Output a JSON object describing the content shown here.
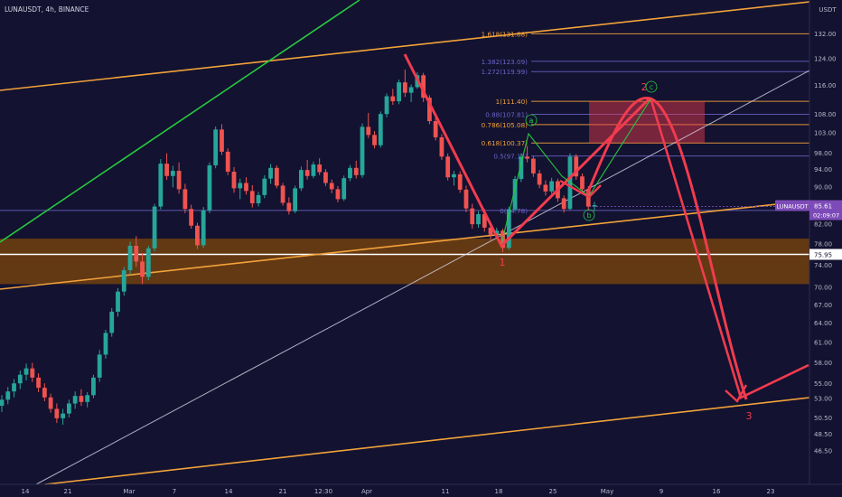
{
  "header": {
    "symbol_info": "LUNAUSDT, 4h, BINANCE",
    "currency": "USDT"
  },
  "price_tag": {
    "symbol": "LUNAUSDT",
    "price": "85.61",
    "countdown": "02:09:07"
  },
  "level_tag": "75.95",
  "colors": {
    "background": "#131230",
    "fib": "#f2a23a",
    "fib_purple": "#6a64c8",
    "wave": "#f23b4e",
    "support_zone": "#6a3d12",
    "trend_green": "#27c93f",
    "white_line": "#ffffff",
    "bull_candle": "#26a69a",
    "bear_candle": "#ef5350"
  },
  "chart_data": {
    "type": "candlestick",
    "y_scale": "log",
    "ylim": [
      45.0,
      140.0
    ],
    "x_ticks": [
      "14",
      "21",
      "Mar",
      "7",
      "14",
      "21",
      "12:30",
      "Apr",
      "11",
      "18",
      "25",
      "May",
      "9",
      "16",
      "23"
    ],
    "y_ticks": [
      "132.00",
      "124.00",
      "116.00",
      "108.00",
      "103.00",
      "98.00",
      "94.00",
      "90.00",
      "85.61",
      "82.00",
      "78.00",
      "75.95",
      "74.00",
      "70.00",
      "67.00",
      "64.00",
      "61.00",
      "58.00",
      "55.00",
      "53.00",
      "50.50",
      "48.50",
      "46.50"
    ],
    "y_tick_values": [
      132,
      124,
      116,
      108,
      103,
      98,
      94,
      90,
      85.61,
      82,
      78,
      75.95,
      74,
      70,
      67,
      64,
      61,
      58,
      55,
      53,
      50.5,
      48.5,
      46.5
    ],
    "fib_levels": [
      {
        "label": "1.618(131.88)",
        "value": 131.88,
        "color": "#f2a23a"
      },
      {
        "label": "1.382(123.09)",
        "value": 123.09,
        "color": "#6a64c8"
      },
      {
        "label": "1.272(119.99)",
        "value": 119.99,
        "color": "#6a64c8"
      },
      {
        "label": "1(111.40)",
        "value": 111.4,
        "color": "#f2a23a"
      },
      {
        "label": "0.88(107.81)",
        "value": 107.81,
        "color": "#6a64c8"
      },
      {
        "label": "0.786(105.08)",
        "value": 105.08,
        "color": "#f2a23a"
      },
      {
        "label": "0.618(100.37)",
        "value": 100.37,
        "color": "#f2a23a"
      },
      {
        "label": "0.5(97.15)",
        "value": 97.15,
        "color": "#6a64c8"
      },
      {
        "label": "0(84.78)",
        "value": 84.78,
        "color": "#6a64c8"
      }
    ],
    "support_zone": {
      "low": 70.5,
      "high": 79.0
    },
    "horizontal_level": 75.95,
    "wave_labels": [
      "1",
      "2",
      "3",
      "a",
      "b",
      "c"
    ],
    "candles_ohlc": [
      [
        52.0,
        53.4,
        51.2,
        52.8
      ],
      [
        52.8,
        54.5,
        52.2,
        53.9
      ],
      [
        53.9,
        55.6,
        53.1,
        55.0
      ],
      [
        55.0,
        56.8,
        54.2,
        56.2
      ],
      [
        56.2,
        57.8,
        55.4,
        57.1
      ],
      [
        57.1,
        57.9,
        55.2,
        55.8
      ],
      [
        55.8,
        56.4,
        53.8,
        54.4
      ],
      [
        54.4,
        55.0,
        52.6,
        53.1
      ],
      [
        53.1,
        53.6,
        51.1,
        51.6
      ],
      [
        51.6,
        52.3,
        49.8,
        50.4
      ],
      [
        50.4,
        51.6,
        49.6,
        51.0
      ],
      [
        51.0,
        52.8,
        50.5,
        52.3
      ],
      [
        52.3,
        53.9,
        51.6,
        53.3
      ],
      [
        53.3,
        54.2,
        52.0,
        52.5
      ],
      [
        52.5,
        53.8,
        51.8,
        53.4
      ],
      [
        53.4,
        56.2,
        53.0,
        55.8
      ],
      [
        55.8,
        59.8,
        55.2,
        59.1
      ],
      [
        59.1,
        62.9,
        58.5,
        62.4
      ],
      [
        62.4,
        66.4,
        61.8,
        65.8
      ],
      [
        65.8,
        69.8,
        65.0,
        69.2
      ],
      [
        69.2,
        73.6,
        68.5,
        73.0
      ],
      [
        73.0,
        78.4,
        72.2,
        77.6
      ],
      [
        77.6,
        79.5,
        73.6,
        74.6
      ],
      [
        74.6,
        76.2,
        70.5,
        71.8
      ],
      [
        71.8,
        77.6,
        71.2,
        77.1
      ],
      [
        77.1,
        86.2,
        76.5,
        85.6
      ],
      [
        85.6,
        96.4,
        85.0,
        95.3
      ],
      [
        95.3,
        97.8,
        91.5,
        92.4
      ],
      [
        92.4,
        94.8,
        89.8,
        93.6
      ],
      [
        93.6,
        95.6,
        88.4,
        89.4
      ],
      [
        89.4,
        90.6,
        84.2,
        85.1
      ],
      [
        85.1,
        86.0,
        81.0,
        81.6
      ],
      [
        81.6,
        82.2,
        77.0,
        77.7
      ],
      [
        77.7,
        85.5,
        77.2,
        84.8
      ],
      [
        84.8,
        95.6,
        84.2,
        94.9
      ],
      [
        94.9,
        104.6,
        94.2,
        103.8
      ],
      [
        103.8,
        105.2,
        97.4,
        98.2
      ],
      [
        98.2,
        99.0,
        92.6,
        93.4
      ],
      [
        93.4,
        94.5,
        88.6,
        89.6
      ],
      [
        89.6,
        91.8,
        87.2,
        90.8
      ],
      [
        90.8,
        92.1,
        88.2,
        89.0
      ],
      [
        89.0,
        90.3,
        85.4,
        86.3
      ],
      [
        86.3,
        88.8,
        85.6,
        88.1
      ],
      [
        88.1,
        92.6,
        87.4,
        91.8
      ],
      [
        91.8,
        95.2,
        90.6,
        94.3
      ],
      [
        94.3,
        94.9,
        89.6,
        90.2
      ],
      [
        90.2,
        90.8,
        85.8,
        86.4
      ],
      [
        86.4,
        87.6,
        83.9,
        84.6
      ],
      [
        84.6,
        90.2,
        84.2,
        89.6
      ],
      [
        89.6,
        94.6,
        89.0,
        93.8
      ],
      [
        93.8,
        96.2,
        91.6,
        92.4
      ],
      [
        92.4,
        95.8,
        91.9,
        95.1
      ],
      [
        95.1,
        96.6,
        92.6,
        93.3
      ],
      [
        93.3,
        94.0,
        90.1,
        90.8
      ],
      [
        90.8,
        91.6,
        88.5,
        89.4
      ],
      [
        89.4,
        90.1,
        86.5,
        87.2
      ],
      [
        87.2,
        92.5,
        86.8,
        91.9
      ],
      [
        91.9,
        95.0,
        91.2,
        94.3
      ],
      [
        94.3,
        96.0,
        91.8,
        92.6
      ],
      [
        92.6,
        105.4,
        92.0,
        104.5
      ],
      [
        104.5,
        108.2,
        101.6,
        102.4
      ],
      [
        102.4,
        103.4,
        99.0,
        99.8
      ],
      [
        99.8,
        108.6,
        99.2,
        107.9
      ],
      [
        107.9,
        113.6,
        107.0,
        112.8
      ],
      [
        112.8,
        114.9,
        110.4,
        111.4
      ],
      [
        111.4,
        117.6,
        110.6,
        116.8
      ],
      [
        116.8,
        120.6,
        112.6,
        113.8
      ],
      [
        113.8,
        116.2,
        111.2,
        115.4
      ],
      [
        115.4,
        119.8,
        114.9,
        118.9
      ],
      [
        118.9,
        119.6,
        111.2,
        112.4
      ],
      [
        112.4,
        113.1,
        105.2,
        106.0
      ],
      [
        106.0,
        107.6,
        101.0,
        101.8
      ],
      [
        101.8,
        102.6,
        96.2,
        97.0
      ],
      [
        97.0,
        97.8,
        91.4,
        92.1
      ],
      [
        92.1,
        93.6,
        90.2,
        92.8
      ],
      [
        92.8,
        93.5,
        88.6,
        89.3
      ],
      [
        89.3,
        90.2,
        84.4,
        85.2
      ],
      [
        85.2,
        86.2,
        81.0,
        81.9
      ],
      [
        81.9,
        84.6,
        81.2,
        84.0
      ],
      [
        84.0,
        85.1,
        80.4,
        81.2
      ],
      [
        81.2,
        82.4,
        78.8,
        79.8
      ],
      [
        79.8,
        81.2,
        78.9,
        80.6
      ],
      [
        80.6,
        81.0,
        76.4,
        77.2
      ],
      [
        77.2,
        85.6,
        76.8,
        85.0
      ],
      [
        85.0,
        92.4,
        84.6,
        91.7
      ],
      [
        91.7,
        97.8,
        91.0,
        97.0
      ],
      [
        97.0,
        99.6,
        95.6,
        96.5
      ],
      [
        96.5,
        97.1,
        92.2,
        93.0
      ],
      [
        93.0,
        93.8,
        89.6,
        90.4
      ],
      [
        90.4,
        91.4,
        88.0,
        88.9
      ],
      [
        88.9,
        92.0,
        88.4,
        91.2
      ],
      [
        91.2,
        91.8,
        86.6,
        87.4
      ],
      [
        87.4,
        88.0,
        84.3,
        85.1
      ],
      [
        85.1,
        97.8,
        84.8,
        97.0
      ],
      [
        97.0,
        97.6,
        91.5,
        92.3
      ],
      [
        92.3,
        93.0,
        88.6,
        89.4
      ],
      [
        89.4,
        90.1,
        84.9,
        85.6
      ],
      [
        85.6,
        86.6,
        84.6,
        85.9
      ]
    ]
  }
}
